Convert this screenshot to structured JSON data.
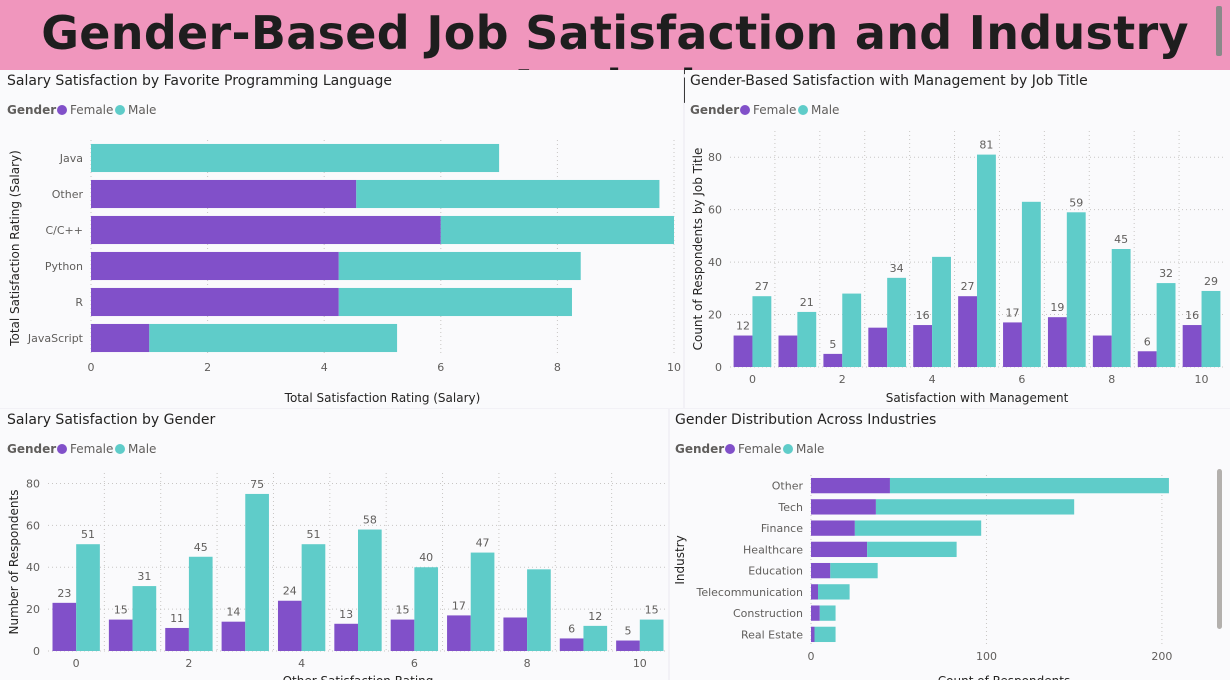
{
  "page": {
    "title": "Gender-Based Job Satisfaction and Industry Analysis"
  },
  "colors": {
    "female": "#8150c9",
    "male": "#5fccc9",
    "title_bg": "#f096bd"
  },
  "chart_data": [
    {
      "id": "lang",
      "type": "bar",
      "orientation": "horizontal",
      "stacked": true,
      "title": "Salary Satisfaction by Favorite Programming Language",
      "legend_title": "Gender",
      "xlabel": "Total Satisfaction Rating (Salary)",
      "ylabel": "Total Satisfaction Rating (Salary)",
      "categories": [
        "Java",
        "Other",
        "C/C++",
        "Python",
        "R",
        "JavaScript"
      ],
      "series": [
        {
          "name": "Female",
          "values": [
            0,
            4.55,
            6.0,
            4.25,
            4.25,
            1.0
          ]
        },
        {
          "name": "Male",
          "values": [
            7.0,
            5.2,
            4.0,
            4.15,
            4.0,
            4.25
          ]
        }
      ],
      "xlim": [
        0,
        10
      ],
      "xticks": [
        "0",
        "2",
        "4",
        "6",
        "8",
        "10"
      ],
      "grid": true,
      "legend_position": "top-left"
    },
    {
      "id": "mgmt",
      "type": "bar",
      "orientation": "vertical",
      "stacked": false,
      "title": "Gender-Based Satisfaction with Management by Job Title",
      "legend_title": "Gender",
      "xlabel": "Satisfaction with Management",
      "ylabel": "Count of Respondents by Job Title",
      "x": [
        0,
        1,
        2,
        3,
        4,
        5,
        6,
        7,
        8,
        9,
        10
      ],
      "series": [
        {
          "name": "Female",
          "values": [
            12,
            12,
            5,
            15,
            16,
            27,
            17,
            19,
            12,
            6,
            16
          ],
          "labels": [
            "12",
            "",
            "5",
            "",
            "16",
            "27",
            "17",
            "19",
            "",
            "6",
            "16"
          ]
        },
        {
          "name": "Male",
          "values": [
            27,
            21,
            28,
            34,
            42,
            81,
            63,
            59,
            45,
            32,
            29
          ],
          "labels": [
            "27",
            "21",
            "",
            "34",
            "",
            "81",
            "",
            "59",
            "45",
            "32",
            "29"
          ]
        }
      ],
      "ylim": [
        0,
        90
      ],
      "yticks": [
        "0",
        "20",
        "40",
        "60",
        "80"
      ],
      "xticks": [
        "0",
        "2",
        "4",
        "6",
        "8",
        "10"
      ],
      "grid": true,
      "legend_position": "top-left"
    },
    {
      "id": "salgender",
      "type": "bar",
      "orientation": "vertical",
      "stacked": false,
      "title": "Salary Satisfaction by Gender",
      "legend_title": "Gender",
      "xlabel": "Other Satisfaction Rating",
      "ylabel": "Number of Respondents",
      "x": [
        0,
        1,
        2,
        3,
        4,
        5,
        6,
        7,
        8,
        9,
        10
      ],
      "series": [
        {
          "name": "Female",
          "values": [
            23,
            15,
            11,
            14,
            24,
            13,
            15,
            17,
            16,
            6,
            5
          ],
          "labels": [
            "23",
            "15",
            "11",
            "14",
            "24",
            "13",
            "15",
            "17",
            "",
            "6",
            "5"
          ]
        },
        {
          "name": "Male",
          "values": [
            51,
            31,
            45,
            75,
            51,
            58,
            40,
            47,
            39,
            12,
            15
          ],
          "labels": [
            "51",
            "31",
            "45",
            "75",
            "51",
            "58",
            "40",
            "47",
            "",
            "12",
            "15"
          ]
        }
      ],
      "ylim": [
        0,
        85
      ],
      "yticks": [
        "0",
        "20",
        "40",
        "60",
        "80"
      ],
      "xticks": [
        "0",
        "2",
        "4",
        "6",
        "8",
        "10"
      ],
      "grid": true,
      "legend_position": "top-left"
    },
    {
      "id": "industry",
      "type": "bar",
      "orientation": "horizontal",
      "stacked": true,
      "title": "Gender Distribution Across Industries",
      "legend_title": "Gender",
      "xlabel": "Count of Respondents",
      "ylabel": "Industry",
      "categories": [
        "Other",
        "Tech",
        "Finance",
        "Healthcare",
        "Education",
        "Telecommunication",
        "Construction",
        "Real Estate"
      ],
      "series": [
        {
          "name": "Female",
          "values": [
            45,
            37,
            25,
            32,
            11,
            4,
            5,
            2
          ]
        },
        {
          "name": "Male",
          "values": [
            159,
            113,
            72,
            51,
            27,
            18,
            9,
            12
          ]
        }
      ],
      "xlim": [
        0,
        220
      ],
      "xticks": [
        "0",
        "100",
        "200"
      ],
      "grid": true,
      "legend_position": "top-left"
    }
  ]
}
